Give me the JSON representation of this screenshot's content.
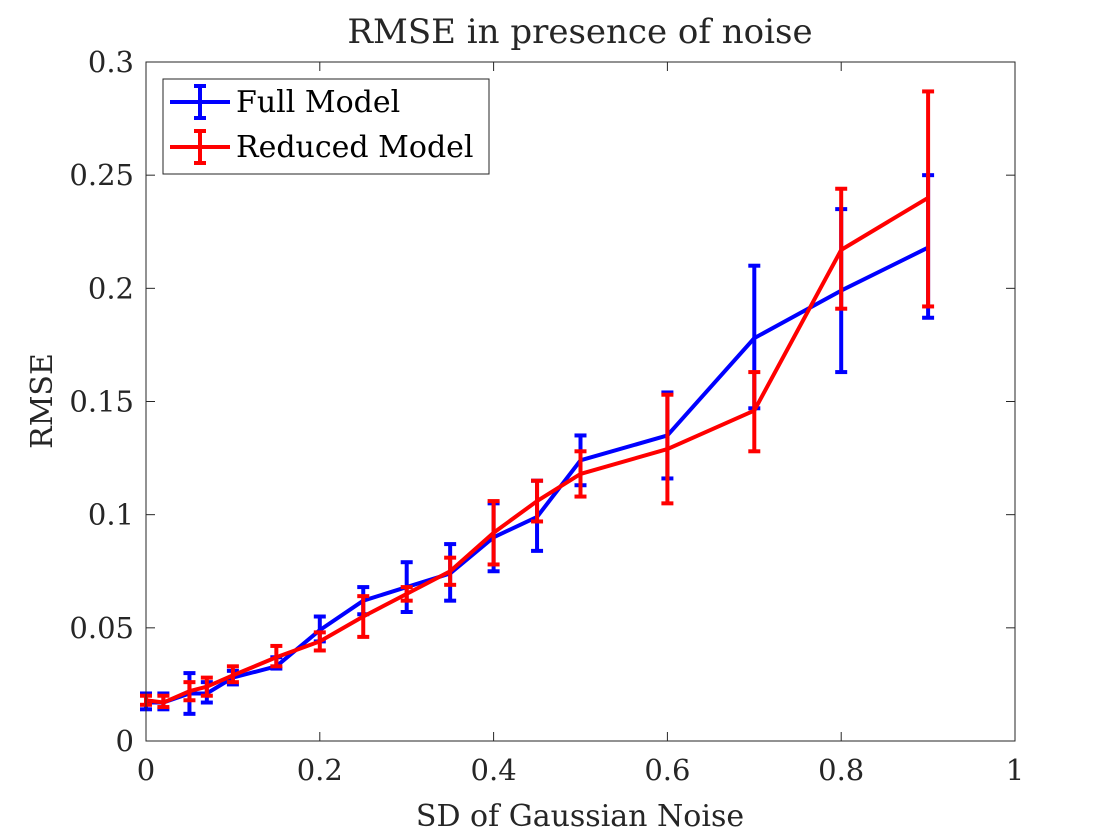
{
  "chart_data": {
    "type": "line",
    "title": "RMSE in presence of noise",
    "xlabel": "SD of Gaussian Noise",
    "ylabel": "RMSE",
    "xlim": [
      0,
      1
    ],
    "ylim": [
      0,
      0.3
    ],
    "xticks": [
      "0",
      "0.2",
      "0.4",
      "0.6",
      "0.8",
      "1"
    ],
    "yticks": [
      "0",
      "0.05",
      "0.1",
      "0.15",
      "0.2",
      "0.25",
      "0.3"
    ],
    "grid": false,
    "legend": "top-left",
    "series": [
      {
        "name": "Full Model",
        "color": "#0000ff",
        "x": [
          0,
          0.02,
          0.05,
          0.07,
          0.1,
          0.15,
          0.2,
          0.25,
          0.3,
          0.35,
          0.4,
          0.45,
          0.5,
          0.6,
          0.7,
          0.8,
          0.9
        ],
        "y": [
          0.017,
          0.017,
          0.021,
          0.021,
          0.028,
          0.033,
          0.049,
          0.062,
          0.068,
          0.074,
          0.09,
          0.099,
          0.124,
          0.135,
          0.178,
          0.199,
          0.218
        ],
        "lower": [
          0.014,
          0.014,
          0.012,
          0.017,
          0.025,
          0.032,
          0.044,
          0.056,
          0.057,
          0.062,
          0.075,
          0.084,
          0.113,
          0.116,
          0.147,
          0.163,
          0.187
        ],
        "upper": [
          0.021,
          0.021,
          0.03,
          0.026,
          0.031,
          0.037,
          0.055,
          0.068,
          0.079,
          0.087,
          0.105,
          0.115,
          0.135,
          0.154,
          0.21,
          0.235,
          0.25
        ]
      },
      {
        "name": "Reduced Model",
        "color": "#ff0000",
        "x": [
          0,
          0.02,
          0.05,
          0.07,
          0.1,
          0.15,
          0.2,
          0.25,
          0.3,
          0.35,
          0.4,
          0.45,
          0.5,
          0.6,
          0.7,
          0.8,
          0.9
        ],
        "y": [
          0.018,
          0.017,
          0.022,
          0.024,
          0.029,
          0.037,
          0.044,
          0.055,
          0.065,
          0.075,
          0.092,
          0.106,
          0.118,
          0.129,
          0.146,
          0.217,
          0.24
        ],
        "lower": [
          0.016,
          0.015,
          0.018,
          0.02,
          0.026,
          0.033,
          0.04,
          0.046,
          0.062,
          0.069,
          0.078,
          0.097,
          0.108,
          0.105,
          0.128,
          0.191,
          0.192
        ],
        "upper": [
          0.02,
          0.02,
          0.026,
          0.028,
          0.033,
          0.042,
          0.048,
          0.064,
          0.068,
          0.081,
          0.106,
          0.115,
          0.128,
          0.153,
          0.163,
          0.244,
          0.287
        ]
      }
    ]
  }
}
